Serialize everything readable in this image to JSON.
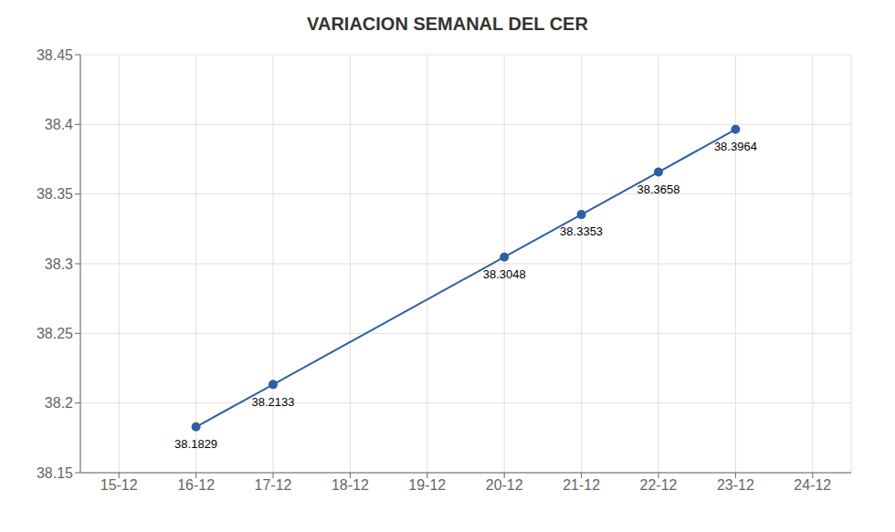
{
  "chart_data": {
    "type": "line",
    "title": "VARIACION SEMANAL DEL CER",
    "x": [
      1,
      2,
      5,
      6,
      7,
      8
    ],
    "values": [
      38.1829,
      38.2133,
      38.3048,
      38.3353,
      38.3658,
      38.3964
    ],
    "color": "#2E5FA3",
    "marker": "o",
    "xlim": [
      -0.5,
      9.5
    ],
    "xticks": [
      {
        "value": 0,
        "label": "15-12"
      },
      {
        "value": 1,
        "label": "16-12"
      },
      {
        "value": 2,
        "label": "17-12"
      },
      {
        "value": 3,
        "label": "18-12"
      },
      {
        "value": 4,
        "label": "19-12"
      },
      {
        "value": 5,
        "label": "20-12"
      },
      {
        "value": 6,
        "label": "21-12"
      },
      {
        "value": 7,
        "label": "22-12"
      },
      {
        "value": 8,
        "label": "23-12"
      },
      {
        "value": 9,
        "label": "24-12"
      }
    ],
    "ylim": [
      38.15,
      38.45
    ],
    "yticks": [
      38.15,
      38.2,
      38.25,
      38.3,
      38.35,
      38.4,
      38.45
    ],
    "grid": true,
    "annotations": [
      {
        "text": "38.2133",
        "x": 2,
        "y": 38.2133
      },
      {
        "text": "38.1829",
        "x": 1,
        "y": 38.1829
      },
      {
        "text": "38.3048",
        "x": 5,
        "y": 38.3048
      },
      {
        "text": "38.3353",
        "x": 6,
        "y": 38.3353
      },
      {
        "text": "38.3658",
        "x": 7,
        "y": 38.3658
      },
      {
        "text": "38.3964",
        "x": 8,
        "y": 38.3964
      }
    ]
  }
}
